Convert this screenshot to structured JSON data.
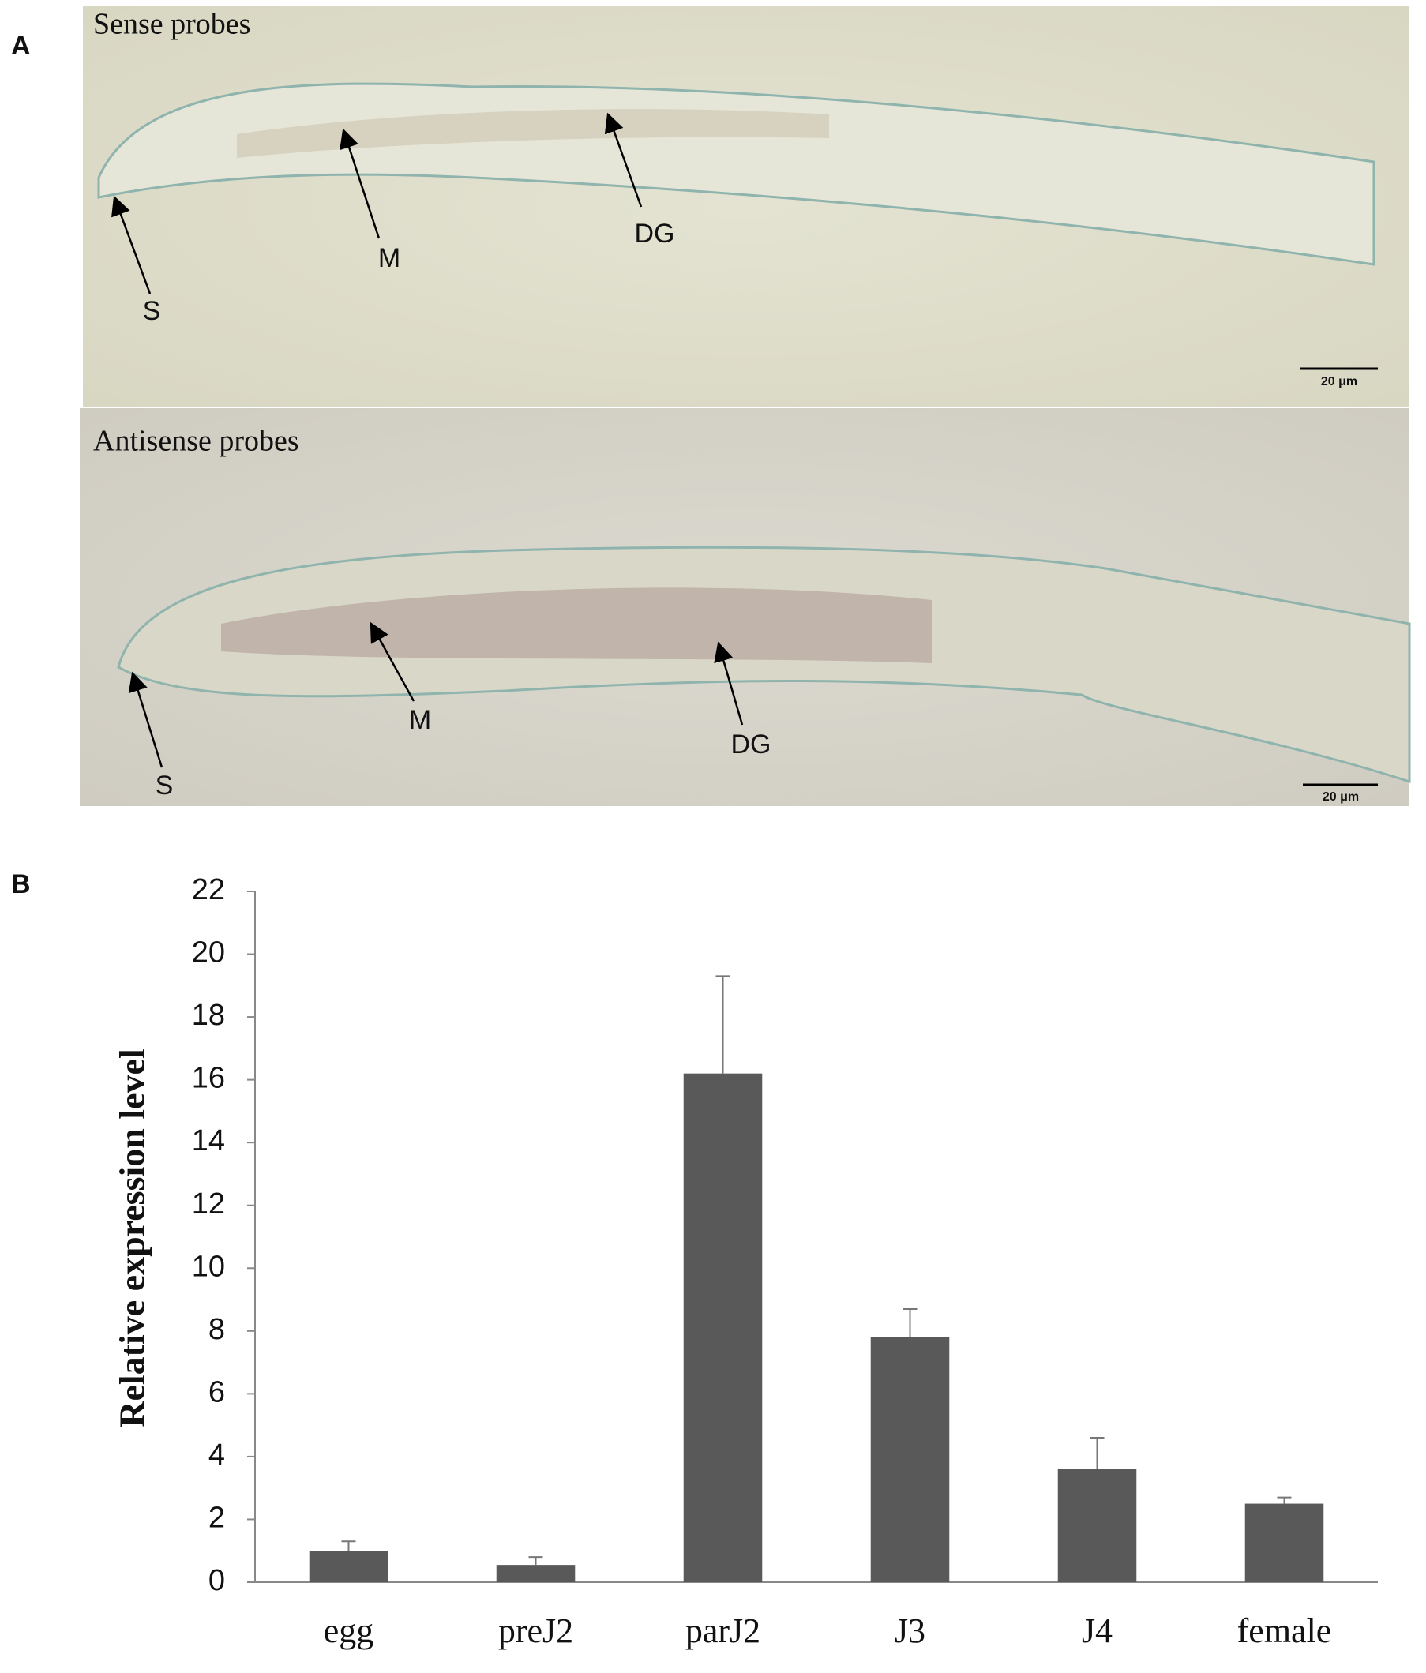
{
  "panel_labels": [
    "A",
    "B"
  ],
  "micrographs": [
    {
      "title": "Sense probes",
      "labels": [
        "S",
        "M",
        "DG"
      ],
      "scale_bar": "20 μm"
    },
    {
      "title": "Antisense probes",
      "labels": [
        "S",
        "M",
        "DG"
      ],
      "scale_bar": "20 μm"
    }
  ],
  "chart_data": {
    "type": "bar",
    "y_label": "Relative expression level",
    "categories": [
      "egg",
      "preJ2",
      "parJ2",
      "J3",
      "J4",
      "female"
    ],
    "values": [
      1.0,
      0.55,
      16.2,
      7.8,
      3.6,
      2.5
    ],
    "errors": [
      0.3,
      0.25,
      3.1,
      0.9,
      1.0,
      0.2
    ],
    "color": "#595959",
    "ylim": [
      0,
      22
    ],
    "yticks": [
      0,
      2,
      4,
      6,
      8,
      10,
      12,
      14,
      16,
      18,
      20,
      22
    ],
    "grid": false
  }
}
